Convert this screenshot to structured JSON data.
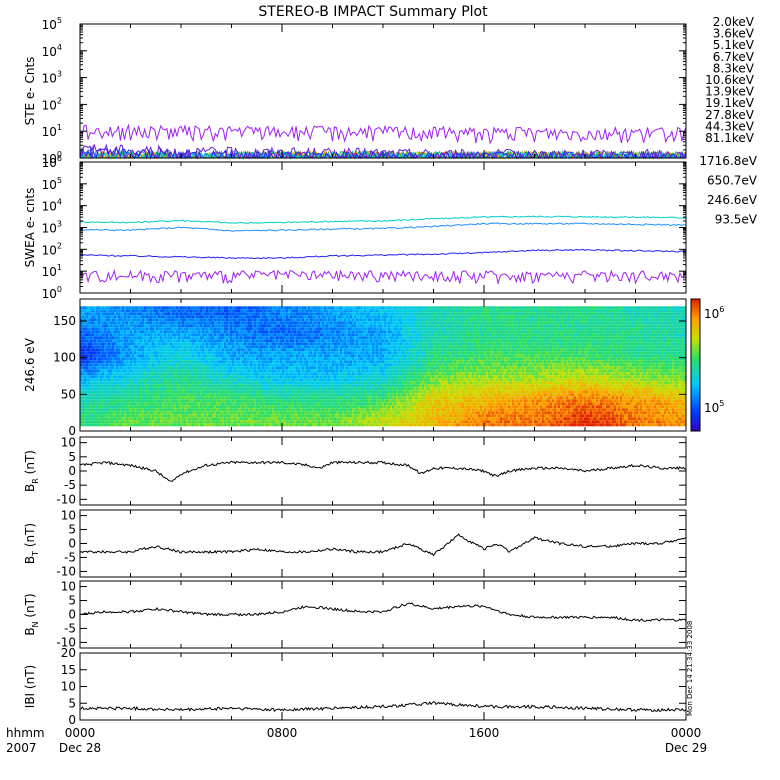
{
  "title": "STEREO-B IMPACT Summary Plot",
  "stamp": "Mon Dec 14 21:34:33 2008",
  "time_axis": {
    "label_top": "hhmm",
    "label_bottom": "2007",
    "ticks": [
      {
        "hhmm": "0000",
        "date": "Dec 28",
        "hour": 0
      },
      {
        "hhmm": "0800",
        "date": "",
        "hour": 8
      },
      {
        "hhmm": "1600",
        "date": "",
        "hour": 16
      },
      {
        "hhmm": "0000",
        "date": "Dec 29",
        "hour": 24
      }
    ]
  },
  "chart_data": [
    {
      "type": "line",
      "ylabel": "STE e- Cnts",
      "yscale": "log",
      "ylim_exp": [
        0,
        5
      ],
      "ytick_exps": [
        0,
        1,
        2,
        3,
        4,
        5
      ],
      "x_hours": [
        0,
        4,
        8,
        12,
        16,
        20,
        24
      ],
      "series": [
        {
          "name": "2.0keV",
          "color": "#a020f0",
          "values": [
            10,
            9,
            9,
            9,
            8,
            8,
            8
          ]
        },
        {
          "name": "3.6keV",
          "color": "#6a1fd0",
          "values": [
            2,
            1.5,
            1.4,
            1.3,
            1.2,
            1.2,
            1.2
          ]
        },
        {
          "name": "5.1keV",
          "color": "#2020ff",
          "values": [
            1.5,
            1.2,
            1.1,
            1.0,
            1.0,
            1.0,
            1.0
          ]
        },
        {
          "name": "6.7keV",
          "color": "#1e90ff",
          "values": [
            1.2,
            1.0,
            1.0,
            1.0,
            1.0,
            1.0,
            1.0
          ]
        },
        {
          "name": "8.3keV",
          "color": "#00c8c8",
          "values": [
            1,
            1,
            1,
            1,
            1,
            1,
            1
          ]
        },
        {
          "name": "10.6keV",
          "color": "#00c080",
          "values": [
            1,
            1,
            1,
            1,
            1,
            1,
            1
          ]
        },
        {
          "name": "13.9keV",
          "color": "#30c020",
          "values": [
            1,
            1,
            1,
            1,
            1,
            1,
            1
          ]
        },
        {
          "name": "19.1keV",
          "color": "#c8c800",
          "values": [
            1,
            1,
            1,
            1,
            1,
            1,
            1
          ]
        },
        {
          "name": "27.8keV",
          "color": "#ffa000",
          "values": [
            1,
            1,
            1,
            1,
            1,
            1,
            1
          ]
        },
        {
          "name": "44.3keV",
          "color": "#ff6000",
          "values": [
            1,
            1,
            1,
            1,
            1,
            1,
            1
          ]
        },
        {
          "name": "81.1keV",
          "color": "#e00000",
          "values": [
            1,
            1,
            1,
            1,
            1,
            1,
            1
          ]
        }
      ]
    },
    {
      "type": "line",
      "ylabel": "SWEA e- cnts",
      "yscale": "log",
      "ylim_exp": [
        0,
        6
      ],
      "ytick_exps": [
        0,
        1,
        2,
        3,
        4,
        5,
        6
      ],
      "x_hours": [
        0,
        2,
        4,
        6,
        8,
        10,
        12,
        14,
        16,
        18,
        20,
        22,
        24
      ],
      "series": [
        {
          "name": "1716.8eV",
          "color": "#a020f0",
          "values": [
            6,
            6,
            6,
            6,
            6,
            6,
            6,
            6,
            6,
            6,
            6,
            6,
            6
          ]
        },
        {
          "name": "650.7eV",
          "color": "#2020ff",
          "values": [
            55,
            50,
            45,
            40,
            40,
            50,
            55,
            60,
            70,
            90,
            95,
            85,
            80
          ]
        },
        {
          "name": "246.6eV",
          "color": "#1e90ff",
          "values": [
            800,
            750,
            1000,
            700,
            750,
            850,
            900,
            1100,
            1500,
            1500,
            1500,
            1400,
            1300
          ]
        },
        {
          "name": "93.5eV",
          "color": "#00d0c8",
          "values": [
            1800,
            1700,
            2100,
            1600,
            1700,
            1900,
            2000,
            2500,
            3000,
            3200,
            3100,
            3000,
            2800
          ]
        }
      ]
    },
    {
      "type": "heatmap",
      "ylabel": "246.6 eV",
      "ylim": [
        0,
        180
      ],
      "yticks": [
        0,
        50,
        100,
        150
      ],
      "colorbar": {
        "scale": "log",
        "min_exp": 5,
        "max_exp": 6,
        "labels": [
          "10^6",
          "10^5"
        ]
      },
      "x_hours": [
        0,
        2,
        4,
        6,
        8,
        10,
        12,
        14,
        16,
        18,
        20,
        22,
        24
      ],
      "y_centers": [
        15,
        45,
        75,
        105,
        135,
        165
      ],
      "z_log": [
        [
          5.5,
          5.6,
          5.6,
          5.6,
          5.6,
          5.6,
          5.7,
          5.8,
          5.9,
          5.9,
          6.0,
          5.9,
          5.85
        ],
        [
          5.45,
          5.5,
          5.55,
          5.55,
          5.5,
          5.5,
          5.55,
          5.75,
          5.8,
          5.85,
          5.9,
          5.85,
          5.8
        ],
        [
          5.3,
          5.4,
          5.5,
          5.4,
          5.35,
          5.35,
          5.4,
          5.6,
          5.65,
          5.65,
          5.7,
          5.65,
          5.6
        ],
        [
          5.1,
          5.3,
          5.4,
          5.3,
          5.3,
          5.3,
          5.3,
          5.5,
          5.55,
          5.55,
          5.55,
          5.5,
          5.5
        ],
        [
          5.2,
          5.3,
          5.3,
          5.25,
          5.2,
          5.25,
          5.3,
          5.45,
          5.5,
          5.5,
          5.5,
          5.5,
          5.45
        ],
        [
          5.3,
          5.25,
          5.2,
          5.2,
          5.25,
          5.3,
          5.35,
          5.45,
          5.5,
          5.5,
          5.5,
          5.45,
          5.45
        ]
      ]
    },
    {
      "type": "line",
      "ylabel_main": "B",
      "ylabel_sub": "R",
      "ylabel_unit": "(nT)",
      "ylim": [
        -12,
        12
      ],
      "yticks": [
        -10,
        -5,
        0,
        5,
        10
      ],
      "x_hours": [
        0,
        1,
        2,
        3,
        3.6,
        4,
        5,
        6,
        7,
        8,
        9,
        9.5,
        10,
        11,
        12,
        13,
        13.5,
        14,
        15,
        16,
        16.5,
        17,
        18,
        19,
        20,
        21,
        22,
        23,
        24
      ],
      "values": [
        2,
        3,
        2,
        0,
        -4,
        -1,
        2,
        3,
        3,
        3,
        2,
        1,
        3,
        3,
        3,
        2,
        -1,
        1,
        1,
        0,
        -2,
        0,
        1,
        1,
        0,
        1,
        2,
        1,
        1
      ]
    },
    {
      "type": "line",
      "ylabel_main": "B",
      "ylabel_sub": "T",
      "ylabel_unit": "(nT)",
      "ylim": [
        -12,
        12
      ],
      "yticks": [
        -10,
        -5,
        0,
        5,
        10
      ],
      "x_hours": [
        0,
        1,
        2,
        3,
        4,
        5,
        6,
        7,
        8,
        9,
        10,
        11,
        12,
        13,
        13.5,
        14,
        15,
        16,
        16.5,
        17,
        18,
        19,
        20,
        21,
        22,
        23,
        24
      ],
      "values": [
        -3,
        -3,
        -3,
        -1,
        -3,
        -3,
        -3,
        -2,
        -3,
        -3,
        -2,
        -3,
        -3,
        0,
        -2,
        -4,
        3,
        -2,
        0,
        -3,
        2,
        0,
        -1,
        -1,
        0,
        0,
        2
      ]
    },
    {
      "type": "line",
      "ylabel_main": "B",
      "ylabel_sub": "N",
      "ylabel_unit": "(nT)",
      "ylim": [
        -12,
        12
      ],
      "yticks": [
        -10,
        -5,
        0,
        5,
        10
      ],
      "x_hours": [
        0,
        1,
        2,
        3,
        4,
        5,
        6,
        7,
        8,
        9,
        10,
        11,
        12,
        13,
        14,
        15,
        16,
        17,
        18,
        19,
        20,
        21,
        22,
        23,
        24
      ],
      "values": [
        0,
        1,
        1,
        2,
        1,
        0,
        0,
        0,
        1,
        3,
        2,
        1,
        1,
        4,
        2,
        3,
        3,
        0,
        -1,
        -1,
        -1,
        -1,
        -2,
        -2,
        -2
      ]
    },
    {
      "type": "line",
      "ylabel_main": "IBI",
      "ylabel_sub": "",
      "ylabel_unit": "(nT)",
      "ylim": [
        0,
        20
      ],
      "yticks": [
        0,
        5,
        10,
        15,
        20
      ],
      "x_hours": [
        0,
        2,
        4,
        6,
        8,
        10,
        12,
        14,
        16,
        18,
        20,
        22,
        24
      ],
      "values": [
        3.5,
        3.5,
        3,
        3.5,
        3,
        3.5,
        4,
        5,
        4,
        4,
        3.5,
        3,
        3
      ]
    }
  ]
}
